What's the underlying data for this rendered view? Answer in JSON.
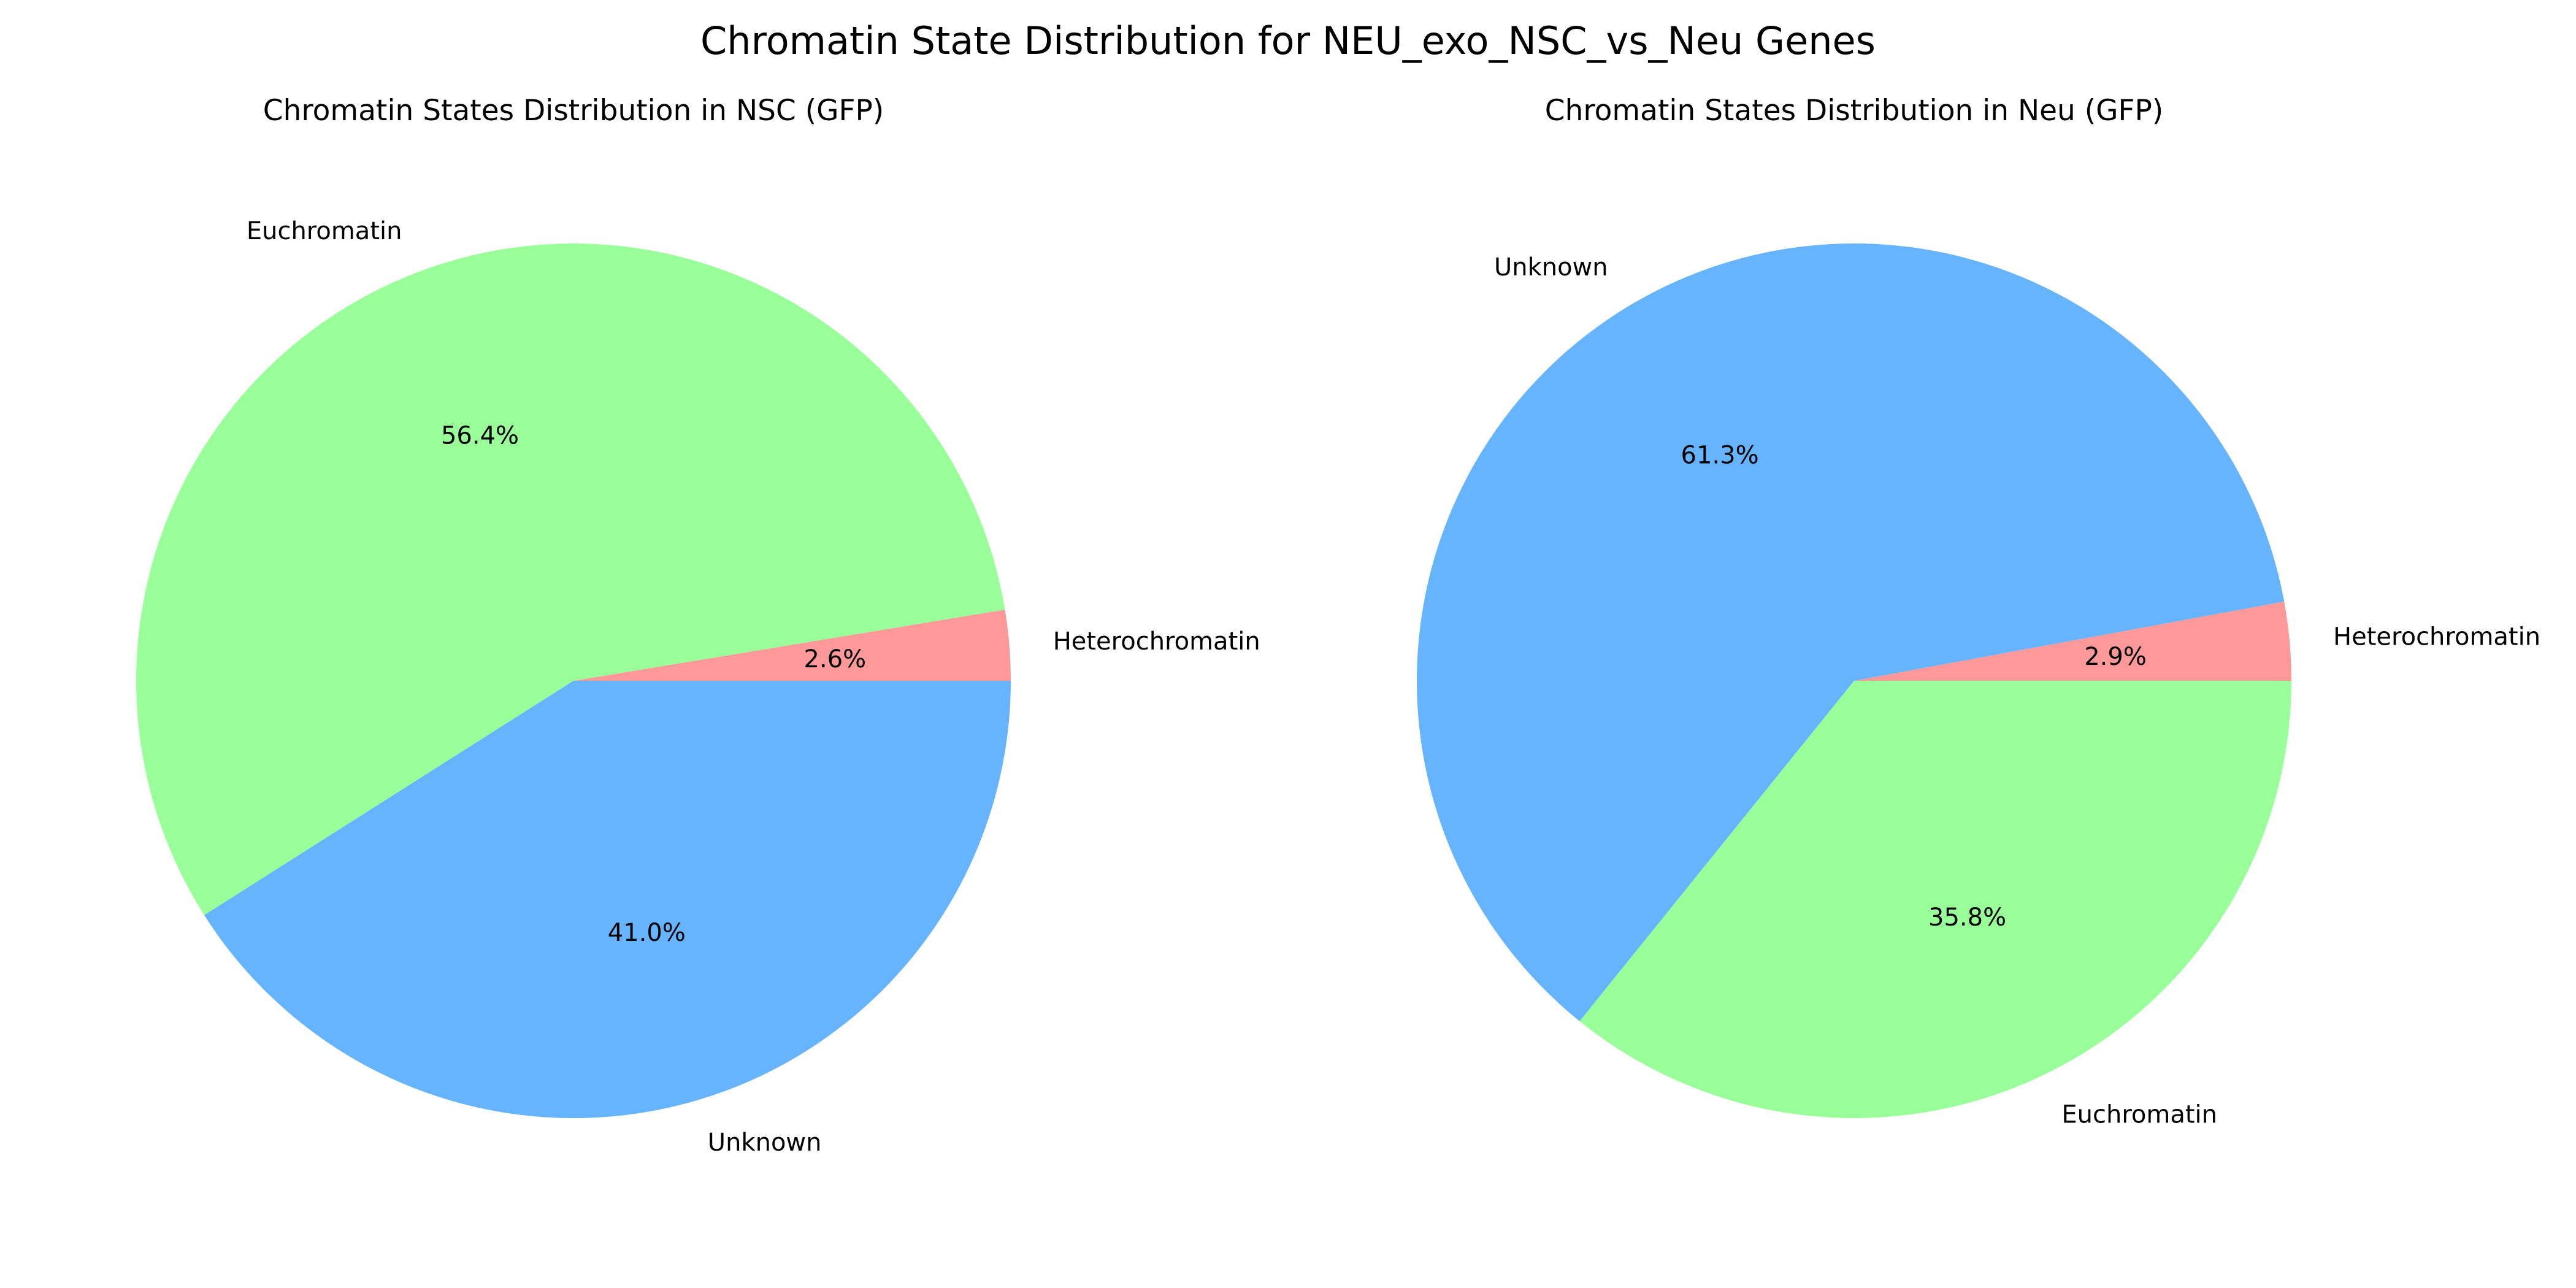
{
  "figure_title": "Chromatin State Distribution for NEU_exo_NSC_vs_Neu Genes",
  "chart_data": [
    {
      "type": "pie",
      "title": "Chromatin States Distribution in NSC (GFP)",
      "start_angle_deg": 0,
      "direction": "counterclockwise",
      "slices": [
        {
          "label": "Heterochromatin",
          "value": 2.6,
          "pct_label": "2.6%",
          "color": "#ff9999"
        },
        {
          "label": "Euchromatin",
          "value": 56.4,
          "pct_label": "56.4%",
          "color": "#99ff99"
        },
        {
          "label": "Unknown",
          "value": 41.0,
          "pct_label": "41.0%",
          "color": "#66b3ff"
        }
      ]
    },
    {
      "type": "pie",
      "title": "Chromatin States Distribution in Neu (GFP)",
      "start_angle_deg": 0,
      "direction": "counterclockwise",
      "slices": [
        {
          "label": "Heterochromatin",
          "value": 2.9,
          "pct_label": "2.9%",
          "color": "#ff9999"
        },
        {
          "label": "Unknown",
          "value": 61.3,
          "pct_label": "61.3%",
          "color": "#66b3ff"
        },
        {
          "label": "Euchromatin",
          "value": 35.8,
          "pct_label": "35.8%",
          "color": "#99ff99"
        }
      ]
    }
  ]
}
